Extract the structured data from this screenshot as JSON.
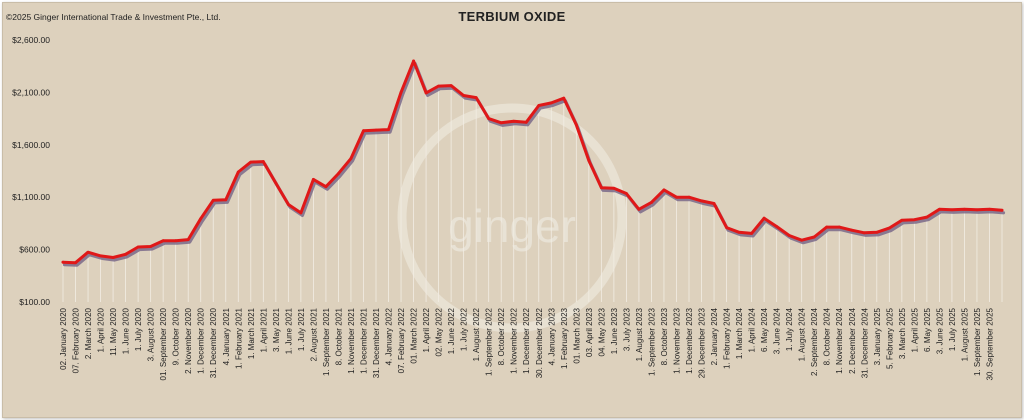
{
  "copyright": "©2025 Ginger International Trade & Investment Pte., Ltd.",
  "watermark": "ginger",
  "colors": {
    "background": "#ddd1bd",
    "line": "#e01818",
    "shadow": "#7a6a8a",
    "drop": "#f2ede4"
  },
  "chart_data": {
    "type": "line",
    "title": "TERBIUM OXIDE",
    "xlabel": "",
    "ylabel": "",
    "ylim": [
      100,
      2600
    ],
    "yticks": [
      100,
      600,
      1100,
      1600,
      2100,
      2600
    ],
    "ytick_labels": [
      "$100.00",
      "$600.00",
      "$1,100.00",
      "$1,600.00",
      "$2,100.00",
      "$2,600.00"
    ],
    "grid": false,
    "series": [
      {
        "values": [
          480,
          475,
          575,
          540,
          525,
          555,
          625,
          630,
          685,
          685,
          695,
          895,
          1070,
          1075,
          1340,
          1435,
          1440,
          1235,
          1030,
          950,
          1270,
          1200,
          1325,
          1470,
          1735,
          1740,
          1745,
          2100,
          2400,
          2095,
          2160,
          2165,
          2070,
          2050,
          1850,
          1810,
          1825,
          1815,
          1975,
          2000,
          2045,
          1790,
          1450,
          1190,
          1185,
          1135,
          985,
          1050,
          1170,
          1100,
          1100,
          1065,
          1040,
          810,
          765,
          755,
          900,
          820,
          735,
          690,
          720,
          815,
          815,
          785,
          760,
          765,
          805,
          880,
          885,
          910,
          985,
          980,
          985,
          980,
          985,
          975
        ]
      }
    ],
    "x_tick_labels": [
      "02. January 2020",
      "07. February 2020",
      "2. March 2020",
      "1. April 2020",
      "11. May 2020",
      "1. June 2020",
      "1. July 2020",
      "3. August 2020",
      "01. September 2020",
      "9. October 2020",
      "2. November 2020",
      "1. December 2020",
      "31. December 2020",
      "4. January 2021",
      "1. February 2021",
      "1. March 2021",
      "1. April 2021",
      "3. May 2021",
      "1. June 2021",
      "1. July 2021",
      "2. August 2021",
      "1. September 2021",
      "8. October 2021",
      "1. November 2021",
      "1. December 2021",
      "31. December 2021",
      "4. January 2022",
      "07. February 2022",
      "01. March 2022",
      "1. April 2022",
      "02. May 2022",
      "1. June 2022",
      "1. July 2022",
      "1. August 2022",
      "1. September 2022",
      "8. October 2022",
      "1. November 2022",
      "1. December 2022",
      "30. December 2022",
      "4. January 2023",
      "1. February 2023",
      "01. March 2023",
      "03. April 2023",
      "04. May 2023",
      "1. June 2023",
      "3. July 2023",
      "1. August 2023",
      "1. September 2023",
      "8. October 2023",
      "1. November 2023",
      "1. December 2023",
      "29. December 2023",
      "2. January 2024",
      "1. February 2024",
      "1. March 2024",
      "1. April 2024",
      "6. May 2024",
      "3. June 2024",
      "1. July 2024",
      "1. August 2024",
      "2. September 2024",
      "8. October 2024",
      "1. November 2024",
      "2. December 2024",
      "31. December 2024",
      "3. January 2025",
      "5. February 2025",
      "3. March 2025",
      "1. April 2025",
      "6. May 2025",
      "3. June 2025",
      "1. July 2025",
      "1. August 2025",
      "1. September 2025",
      "30. September 2025",
      ""
    ]
  }
}
